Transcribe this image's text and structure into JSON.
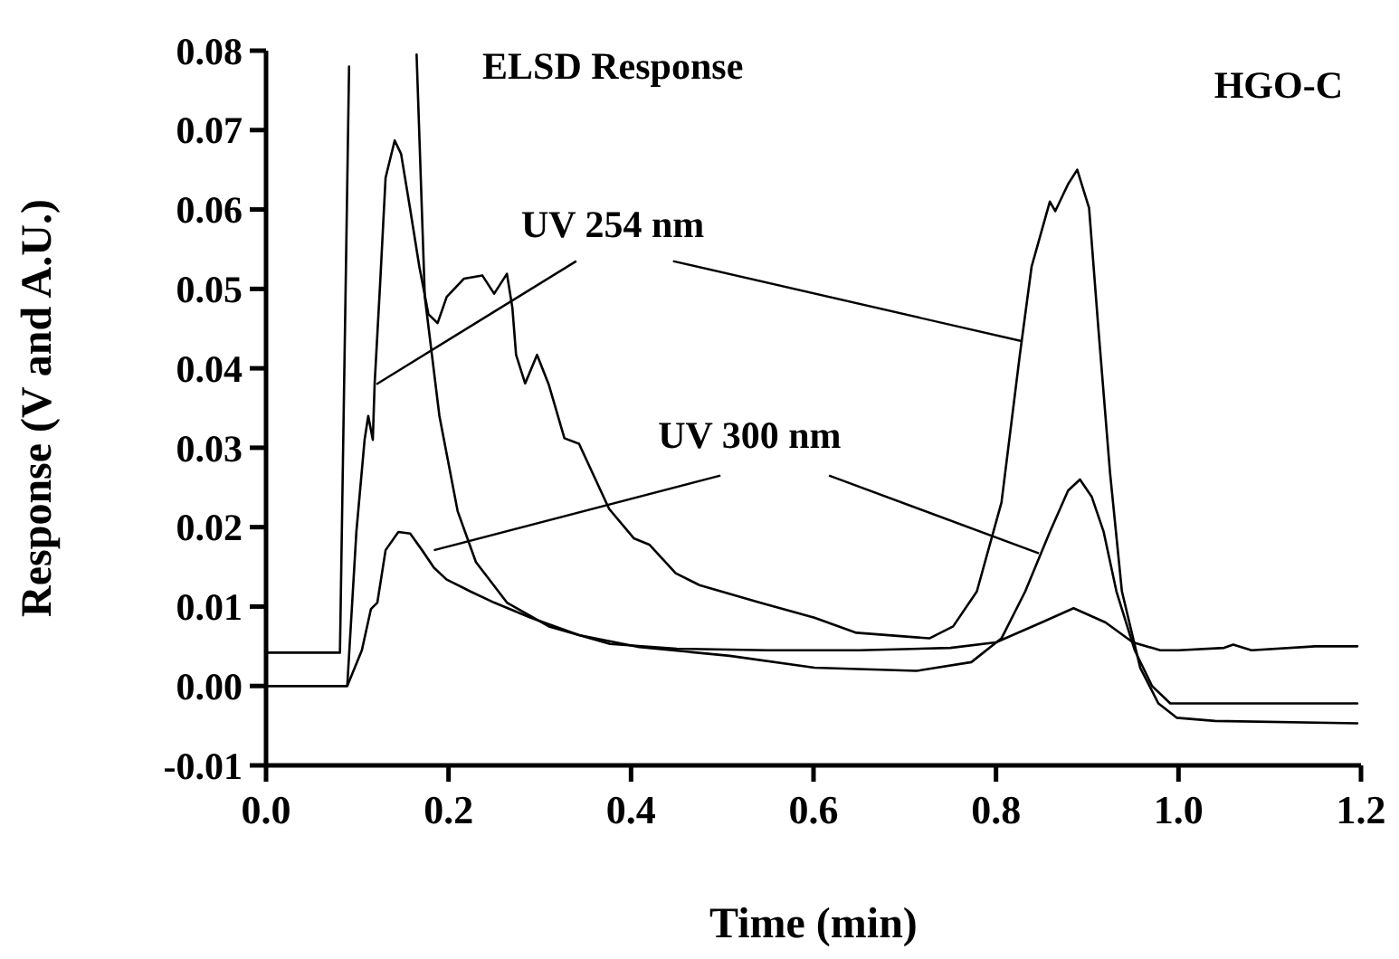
{
  "chart_data": {
    "type": "line",
    "xlabel": "Time (min)",
    "ylabel": "Response (V and A.U.)",
    "xlim": [
      0,
      1.2
    ],
    "ylim": [
      -0.01,
      0.08
    ],
    "xticks": [
      {
        "value": 0,
        "label": "0.0"
      },
      {
        "value": 0.2,
        "label": "0.2"
      },
      {
        "value": 0.4,
        "label": "0.4"
      },
      {
        "value": 0.6,
        "label": "0.6"
      },
      {
        "value": 0.8,
        "label": "0.8"
      },
      {
        "value": 1,
        "label": "1.0"
      },
      {
        "value": 1.2,
        "label": "1.2"
      }
    ],
    "yticks": [
      {
        "value": -0.01,
        "label": "-0.01"
      },
      {
        "value": 0,
        "label": "0.00"
      },
      {
        "value": 0.01,
        "label": "0.01"
      },
      {
        "value": 0.02,
        "label": "0.02"
      },
      {
        "value": 0.03,
        "label": "0.03"
      },
      {
        "value": 0.04,
        "label": "0.04"
      },
      {
        "value": 0.05,
        "label": "0.05"
      },
      {
        "value": 0.06,
        "label": "0.06"
      },
      {
        "value": 0.07,
        "label": "0.07"
      },
      {
        "value": 0.08,
        "label": "0.08"
      }
    ],
    "grid": false,
    "marker": "none",
    "line_style": "solid",
    "annotations": [
      "HGO-C"
    ],
    "series": [
      {
        "name": "ELSD Response",
        "color": "#000000",
        "x": [
          0,
          0.081,
          0.091,
          0.128,
          0.165,
          0.174,
          0.19,
          0.21,
          0.23,
          0.264,
          0.31,
          0.377,
          0.45,
          0.55,
          0.65,
          0.75,
          0.8,
          0.85,
          0.885,
          0.92,
          0.95,
          0.98,
          1.0,
          1.05,
          1.06,
          1.08,
          1.15,
          1.196
        ],
        "values": [
          0.0042,
          0.0042,
          0.078,
          null,
          0.0795,
          0.049,
          0.034,
          0.022,
          0.0156,
          0.0105,
          0.0075,
          0.0053,
          0.0047,
          0.0045,
          0.0045,
          0.0048,
          0.0055,
          0.008,
          0.0098,
          0.008,
          0.0055,
          0.0045,
          0.0045,
          0.0048,
          0.0052,
          0.0045,
          0.005,
          0.005
        ]
      },
      {
        "name": "UV 254 nm",
        "color": "#000000",
        "x": [
          0,
          0.089,
          0.099,
          0.108,
          0.112,
          0.117,
          0.119,
          0.125,
          0.131,
          0.141,
          0.148,
          0.158,
          0.168,
          0.178,
          0.188,
          0.198,
          0.217,
          0.237,
          0.25,
          0.264,
          0.27,
          0.274,
          0.284,
          0.297,
          0.31,
          0.327,
          0.343,
          0.376,
          0.403,
          0.42,
          0.449,
          0.475,
          0.541,
          0.601,
          0.647,
          0.727,
          0.753,
          0.779,
          0.806,
          0.826,
          0.839,
          0.859,
          0.865,
          0.879,
          0.889,
          0.902,
          0.912,
          0.925,
          0.938,
          0.958,
          0.978,
          0.998,
          1.04,
          1.196
        ],
        "values": [
          0,
          0,
          0.0194,
          0.031,
          0.034,
          0.031,
          0.038,
          0.0506,
          0.064,
          0.0687,
          0.067,
          0.06,
          0.0528,
          0.0468,
          0.0457,
          0.049,
          0.0513,
          0.0517,
          0.0494,
          0.0519,
          0.0476,
          0.0417,
          0.0381,
          0.0417,
          0.0379,
          0.0312,
          0.0305,
          0.0223,
          0.0186,
          0.0178,
          0.0142,
          0.0127,
          0.0105,
          0.0086,
          0.0067,
          0.006,
          0.0075,
          0.0119,
          0.0231,
          0.0416,
          0.0528,
          0.061,
          0.0598,
          0.0632,
          0.065,
          0.0602,
          0.0453,
          0.0268,
          0.0119,
          0.0023,
          -0.0022,
          -0.004,
          -0.0044,
          -0.0047
        ]
      },
      {
        "name": "UV 300 nm",
        "color": "#000000",
        "x": [
          0,
          0.089,
          0.105,
          0.115,
          0.122,
          0.131,
          0.145,
          0.158,
          0.171,
          0.184,
          0.198,
          0.224,
          0.25,
          0.29,
          0.343,
          0.409,
          0.508,
          0.601,
          0.713,
          0.773,
          0.806,
          0.832,
          0.859,
          0.879,
          0.892,
          0.905,
          0.918,
          0.932,
          0.952,
          0.971,
          0.991,
          1.196
        ],
        "values": [
          0,
          0,
          0.0045,
          0.0097,
          0.0105,
          0.0171,
          0.0194,
          0.0192,
          0.0171,
          0.0149,
          0.0134,
          0.0119,
          0.0105,
          0.0086,
          0.0064,
          0.0049,
          0.0038,
          0.0023,
          0.0019,
          0.003,
          0.006,
          0.0119,
          0.0194,
          0.0246,
          0.026,
          0.0238,
          0.0194,
          0.0119,
          0.0045,
          0,
          -0.0022,
          -0.0022
        ]
      }
    ]
  }
}
